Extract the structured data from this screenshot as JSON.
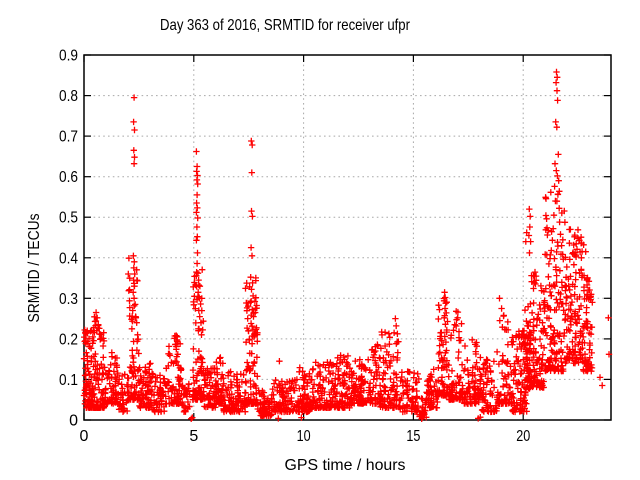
{
  "chart_data": {
    "type": "scatter",
    "title": "Day 363 of 2016, SRMTID for receiver ufpr",
    "xlabel": "GPS time / hours",
    "ylabel": "SRMTID / TECUs",
    "xlim": [
      0,
      24
    ],
    "ylim": [
      0,
      0.9
    ],
    "xticks": [
      0,
      5,
      10,
      15,
      20
    ],
    "xtick_labels": [
      "0",
      "5",
      "10",
      "15",
      "20"
    ],
    "yticks": [
      0,
      0.1,
      0.2,
      0.3,
      0.4,
      0.5,
      0.6,
      0.7,
      0.8,
      0.9
    ],
    "ytick_labels": [
      "0",
      "0.1",
      "0.2",
      "0.3",
      "0.4",
      "0.5",
      "0.6",
      "0.7",
      "0.8",
      "0.9"
    ],
    "grid": true,
    "grid_style": "dotted",
    "grid_color": "#a8a8a8",
    "legend": "none",
    "marker": "plus",
    "marker_color": "#ff0000",
    "series_name": "SRMTID",
    "notable_points": [
      [
        0.03,
        0.222
      ],
      [
        0.06,
        0.195
      ],
      [
        0.4,
        0.205
      ],
      [
        0.45,
        0.228
      ],
      [
        0.5,
        0.243
      ],
      [
        0.55,
        0.265
      ],
      [
        0.58,
        0.22
      ],
      [
        0.6,
        0.252
      ],
      [
        0.65,
        0.235
      ],
      [
        0.7,
        0.212
      ],
      [
        0.75,
        0.2
      ],
      [
        2.28,
        0.795
      ],
      [
        2.26,
        0.735
      ],
      [
        2.3,
        0.715
      ],
      [
        2.27,
        0.665
      ],
      [
        2.3,
        0.648
      ],
      [
        2.28,
        0.632
      ],
      [
        2.25,
        0.405
      ],
      [
        2.29,
        0.39
      ],
      [
        2.27,
        0.375
      ],
      [
        2.31,
        0.36
      ],
      [
        2.26,
        0.345
      ],
      [
        2.3,
        0.33
      ],
      [
        2.24,
        0.315
      ],
      [
        2.28,
        0.3
      ],
      [
        2.33,
        0.285
      ],
      [
        2.22,
        0.27
      ],
      [
        2.35,
        0.255
      ],
      [
        2.4,
        0.24
      ],
      [
        2.18,
        0.225
      ],
      [
        2.44,
        0.21
      ],
      [
        4.16,
        0.186
      ],
      [
        4.2,
        0.208
      ],
      [
        4.24,
        0.194
      ],
      [
        4.88,
        0.003
      ],
      [
        4.93,
        0.006
      ],
      [
        5.12,
        0.662
      ],
      [
        5.15,
        0.625
      ],
      [
        5.13,
        0.613
      ],
      [
        5.17,
        0.603
      ],
      [
        5.14,
        0.592
      ],
      [
        5.18,
        0.582
      ],
      [
        5.15,
        0.555
      ],
      [
        5.13,
        0.535
      ],
      [
        5.16,
        0.523
      ],
      [
        5.12,
        0.512
      ],
      [
        5.18,
        0.498
      ],
      [
        5.14,
        0.476
      ],
      [
        5.16,
        0.452
      ],
      [
        5.12,
        0.443
      ],
      [
        5.17,
        0.412
      ],
      [
        5.15,
        0.386
      ],
      [
        5.19,
        0.362
      ],
      [
        5.22,
        0.345
      ],
      [
        5.28,
        0.33
      ],
      [
        5.2,
        0.315
      ],
      [
        5.25,
        0.3
      ],
      [
        5.31,
        0.286
      ],
      [
        5.23,
        0.27
      ],
      [
        5.27,
        0.255
      ],
      [
        5.33,
        0.24
      ],
      [
        5.21,
        0.225
      ],
      [
        5.35,
        0.21
      ],
      [
        6.18,
        0.152
      ],
      [
        6.22,
        0.14
      ],
      [
        7.62,
        0.688
      ],
      [
        7.66,
        0.678
      ],
      [
        7.64,
        0.61
      ],
      [
        7.63,
        0.515
      ],
      [
        7.67,
        0.502
      ],
      [
        7.61,
        0.425
      ],
      [
        7.65,
        0.405
      ],
      [
        7.59,
        0.352
      ],
      [
        7.68,
        0.338
      ],
      [
        7.63,
        0.322
      ],
      [
        7.7,
        0.306
      ],
      [
        7.58,
        0.29
      ],
      [
        7.66,
        0.272
      ],
      [
        7.72,
        0.255
      ],
      [
        7.61,
        0.238
      ],
      [
        7.69,
        0.222
      ],
      [
        7.74,
        0.205
      ],
      [
        8.85,
        0.004
      ],
      [
        8.9,
        0.145
      ],
      [
        9.9,
        0.006
      ],
      [
        10.55,
        0.142
      ],
      [
        12.02,
        0.158
      ],
      [
        13.36,
        0.186
      ],
      [
        14.12,
        0.215
      ],
      [
        14.18,
        0.25
      ],
      [
        14.22,
        0.232
      ],
      [
        15.38,
        0.003
      ],
      [
        15.43,
        0.007
      ],
      [
        16.4,
        0.294
      ],
      [
        16.41,
        0.252
      ],
      [
        16.42,
        0.315
      ],
      [
        16.43,
        0.206
      ],
      [
        16.44,
        0.275
      ],
      [
        16.45,
        0.302
      ],
      [
        16.46,
        0.236
      ],
      [
        16.47,
        0.288
      ],
      [
        16.48,
        0.192
      ],
      [
        16.5,
        0.264
      ],
      [
        16.52,
        0.222
      ],
      [
        16.88,
        0.235
      ],
      [
        16.95,
        0.268
      ],
      [
        17.02,
        0.252
      ],
      [
        17.08,
        0.218
      ],
      [
        17.95,
        0.004
      ],
      [
        18.05,
        0.007
      ],
      [
        18.92,
        0.3
      ],
      [
        19.02,
        0.275
      ],
      [
        19.12,
        0.258
      ],
      [
        19.3,
        0.242
      ],
      [
        20.12,
        0.44
      ],
      [
        20.16,
        0.462
      ],
      [
        20.26,
        0.455
      ],
      [
        20.28,
        0.52
      ],
      [
        20.29,
        0.412
      ],
      [
        20.3,
        0.476
      ],
      [
        20.32,
        0.502
      ],
      [
        20.34,
        0.44
      ],
      [
        21.22,
        0.398
      ],
      [
        21.28,
        0.418
      ],
      [
        21.33,
        0.443
      ],
      [
        21.37,
        0.472
      ],
      [
        21.4,
        0.505
      ],
      [
        21.43,
        0.576
      ],
      [
        21.45,
        0.632
      ],
      [
        21.47,
        0.54
      ],
      [
        21.48,
        0.735
      ],
      [
        21.5,
        0.832
      ],
      [
        21.51,
        0.615
      ],
      [
        21.52,
        0.858
      ],
      [
        21.53,
        0.722
      ],
      [
        21.54,
        0.812
      ],
      [
        21.55,
        0.845
      ],
      [
        21.56,
        0.602
      ],
      [
        21.57,
        0.788
      ],
      [
        21.58,
        0.556
      ],
      [
        21.6,
        0.655
      ],
      [
        21.62,
        0.59
      ],
      [
        21.64,
        0.522
      ],
      [
        21.66,
        0.488
      ],
      [
        21.7,
        0.458
      ],
      [
        21.75,
        0.43
      ],
      [
        21.8,
        0.408
      ],
      [
        22.15,
        0.47
      ],
      [
        22.25,
        0.41
      ],
      [
        22.35,
        0.456
      ],
      [
        22.45,
        0.421
      ],
      [
        22.55,
        0.443
      ],
      [
        22.65,
        0.4
      ],
      [
        22.75,
        0.432
      ],
      [
        22.85,
        0.415
      ],
      [
        23.1,
        0.31
      ],
      [
        23.15,
        0.29
      ],
      [
        23.5,
        0.105
      ],
      [
        23.6,
        0.085
      ],
      [
        23.88,
        0.252
      ],
      [
        23.91,
        0.162
      ]
    ],
    "density_clusters_format": [
      "x_start",
      "x_end",
      "count",
      "y_min",
      "y_max",
      "low_bias_exponent"
    ],
    "density_clusters": [
      [
        0.0,
        0.15,
        25,
        0.04,
        0.23,
        1.6
      ],
      [
        0.1,
        0.95,
        150,
        0.03,
        0.26,
        2.2
      ],
      [
        0.95,
        1.2,
        20,
        0.04,
        0.13,
        1.8
      ],
      [
        1.2,
        1.55,
        40,
        0.04,
        0.17,
        2.0
      ],
      [
        1.55,
        2.0,
        35,
        0.02,
        0.12,
        1.8
      ],
      [
        2.0,
        2.5,
        90,
        0.05,
        0.42,
        2.8
      ],
      [
        2.5,
        3.15,
        70,
        0.03,
        0.14,
        1.8
      ],
      [
        3.15,
        3.7,
        45,
        0.02,
        0.11,
        1.8
      ],
      [
        3.7,
        4.45,
        80,
        0.04,
        0.21,
        2.2
      ],
      [
        4.45,
        4.85,
        30,
        0.02,
        0.09,
        1.6
      ],
      [
        4.95,
        5.45,
        90,
        0.05,
        0.38,
        2.6
      ],
      [
        5.45,
        6.0,
        50,
        0.03,
        0.13,
        1.8
      ],
      [
        6.0,
        6.35,
        45,
        0.04,
        0.155,
        1.8
      ],
      [
        6.35,
        7.35,
        90,
        0.02,
        0.12,
        1.8
      ],
      [
        7.35,
        7.9,
        100,
        0.04,
        0.36,
        2.4
      ],
      [
        7.9,
        8.6,
        60,
        0.01,
        0.08,
        1.6
      ],
      [
        8.6,
        9.7,
        90,
        0.02,
        0.1,
        1.8
      ],
      [
        9.7,
        10.4,
        70,
        0.02,
        0.135,
        2.0
      ],
      [
        10.4,
        11.3,
        90,
        0.03,
        0.145,
        2.0
      ],
      [
        11.3,
        12.1,
        90,
        0.03,
        0.16,
        2.1
      ],
      [
        12.1,
        13.1,
        110,
        0.04,
        0.15,
        1.9
      ],
      [
        13.1,
        13.5,
        40,
        0.04,
        0.19,
        2.0
      ],
      [
        13.5,
        14.35,
        90,
        0.03,
        0.22,
        2.4
      ],
      [
        14.35,
        15.25,
        70,
        0.02,
        0.12,
        1.8
      ],
      [
        15.25,
        15.6,
        25,
        0.005,
        0.06,
        1.4
      ],
      [
        15.6,
        16.1,
        50,
        0.03,
        0.13,
        1.6
      ],
      [
        16.1,
        16.6,
        60,
        0.06,
        0.3,
        2.2
      ],
      [
        16.6,
        17.3,
        70,
        0.05,
        0.27,
        2.6
      ],
      [
        17.3,
        18.1,
        80,
        0.04,
        0.2,
        2.2
      ],
      [
        18.1,
        18.8,
        60,
        0.02,
        0.15,
        2.0
      ],
      [
        18.8,
        19.5,
        70,
        0.04,
        0.28,
        2.4
      ],
      [
        19.5,
        20.3,
        110,
        0.02,
        0.22,
        1.8
      ],
      [
        20.05,
        20.35,
        35,
        0.1,
        0.28,
        2.0
      ],
      [
        20.3,
        21.0,
        110,
        0.08,
        0.38,
        2.0
      ],
      [
        21.0,
        21.9,
        130,
        0.12,
        0.58,
        2.0
      ],
      [
        21.9,
        22.7,
        120,
        0.14,
        0.47,
        1.8
      ],
      [
        22.7,
        23.15,
        65,
        0.12,
        0.36,
        1.7
      ]
    ]
  }
}
